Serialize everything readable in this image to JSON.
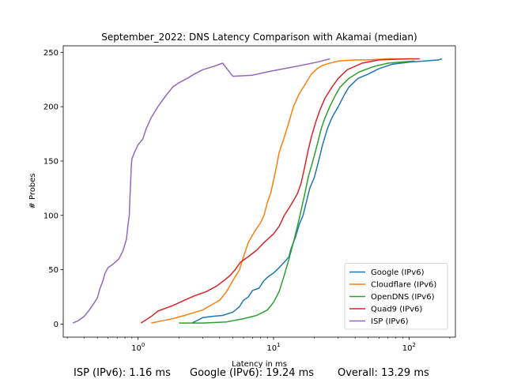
{
  "chart_data": {
    "type": "line",
    "title": "September_2022: DNS Latency Comparison with Akamai (median)",
    "xlabel": "Latency in ms",
    "ylabel": "# Probes",
    "xscale": "log",
    "xlim": [
      0.28,
      220
    ],
    "ylim": [
      -12,
      256
    ],
    "x_ticks": [
      {
        "value": 1,
        "label": "10^0"
      },
      {
        "value": 10,
        "label": "10^1"
      },
      {
        "value": 100,
        "label": "10^2"
      }
    ],
    "y_ticks": [
      0,
      50,
      100,
      150,
      200,
      250
    ],
    "grid": false,
    "legend_position": "lower-right",
    "series": [
      {
        "name": "Google (IPv6)",
        "color": "#1f77b4",
        "points": [
          [
            2.5,
            1
          ],
          [
            2.8,
            4
          ],
          [
            3.0,
            6
          ],
          [
            3.5,
            7
          ],
          [
            4.2,
            8
          ],
          [
            5.0,
            11
          ],
          [
            5.6,
            16
          ],
          [
            6.0,
            22
          ],
          [
            6.5,
            25
          ],
          [
            7.0,
            31
          ],
          [
            7.8,
            33
          ],
          [
            8.5,
            40
          ],
          [
            9.0,
            43
          ],
          [
            10.0,
            47
          ],
          [
            11.0,
            52
          ],
          [
            12.0,
            57
          ],
          [
            13.0,
            62
          ],
          [
            13.5,
            70
          ],
          [
            14.5,
            80
          ],
          [
            15.5,
            92
          ],
          [
            16.5,
            100
          ],
          [
            17.5,
            113
          ],
          [
            18.5,
            125
          ],
          [
            20.0,
            135
          ],
          [
            21.5,
            150
          ],
          [
            23.0,
            165
          ],
          [
            25.0,
            180
          ],
          [
            27.0,
            190
          ],
          [
            30.0,
            200
          ],
          [
            33.0,
            210
          ],
          [
            36.0,
            218
          ],
          [
            42.0,
            226
          ],
          [
            50.0,
            230
          ],
          [
            60.0,
            235
          ],
          [
            75.0,
            239
          ],
          [
            100.0,
            241
          ],
          [
            130.0,
            242
          ],
          [
            165.0,
            243
          ],
          [
            175.0,
            244
          ]
        ]
      },
      {
        "name": "Cloudflare (IPv6)",
        "color": "#ff7f0e",
        "points": [
          [
            1.25,
            1
          ],
          [
            1.5,
            3
          ],
          [
            1.8,
            5
          ],
          [
            2.2,
            8
          ],
          [
            3.0,
            13
          ],
          [
            4.0,
            22
          ],
          [
            4.5,
            30
          ],
          [
            5.0,
            40
          ],
          [
            5.6,
            50
          ],
          [
            6.0,
            62
          ],
          [
            6.5,
            75
          ],
          [
            7.0,
            82
          ],
          [
            7.5,
            88
          ],
          [
            8.0,
            93
          ],
          [
            8.5,
            100
          ],
          [
            9.0,
            112
          ],
          [
            9.5,
            120
          ],
          [
            10.0,
            132
          ],
          [
            10.5,
            145
          ],
          [
            11.0,
            158
          ],
          [
            12.0,
            172
          ],
          [
            13.0,
            186
          ],
          [
            14.0,
            200
          ],
          [
            15.5,
            212
          ],
          [
            17.0,
            220
          ],
          [
            19.0,
            230
          ],
          [
            21.0,
            235
          ],
          [
            23.0,
            238
          ],
          [
            26.0,
            240
          ],
          [
            30.0,
            242
          ],
          [
            40.0,
            243
          ],
          [
            50.0,
            243
          ],
          [
            70.0,
            244
          ],
          [
            100.0,
            244
          ]
        ]
      },
      {
        "name": "OpenDNS (IPv6)",
        "color": "#2ca02c",
        "points": [
          [
            2.0,
            1
          ],
          [
            3.0,
            1
          ],
          [
            4.5,
            2
          ],
          [
            6.0,
            5
          ],
          [
            7.5,
            8
          ],
          [
            9.0,
            13
          ],
          [
            10.0,
            20
          ],
          [
            11.0,
            30
          ],
          [
            12.0,
            45
          ],
          [
            13.0,
            60
          ],
          [
            14.0,
            75
          ],
          [
            15.0,
            90
          ],
          [
            16.0,
            105
          ],
          [
            17.0,
            120
          ],
          [
            18.0,
            135
          ],
          [
            19.5,
            150
          ],
          [
            21.0,
            165
          ],
          [
            22.5,
            180
          ],
          [
            24.0,
            190
          ],
          [
            26.0,
            200
          ],
          [
            28.5,
            210
          ],
          [
            31.0,
            218
          ],
          [
            36.0,
            226
          ],
          [
            43.0,
            232
          ],
          [
            55.0,
            237
          ],
          [
            70.0,
            240
          ],
          [
            85.0,
            241
          ],
          [
            110.0,
            242
          ]
        ]
      },
      {
        "name": "Quad9 (IPv6)",
        "color": "#d62728",
        "points": [
          [
            1.05,
            1
          ],
          [
            1.25,
            7
          ],
          [
            1.4,
            12
          ],
          [
            1.8,
            17
          ],
          [
            2.2,
            22
          ],
          [
            2.6,
            26
          ],
          [
            3.2,
            30
          ],
          [
            3.8,
            35
          ],
          [
            4.3,
            40
          ],
          [
            4.8,
            45
          ],
          [
            5.2,
            50
          ],
          [
            5.7,
            57
          ],
          [
            6.5,
            62
          ],
          [
            7.5,
            68
          ],
          [
            8.5,
            75
          ],
          [
            10.0,
            83
          ],
          [
            11.0,
            90
          ],
          [
            12.0,
            100
          ],
          [
            13.5,
            110
          ],
          [
            15.0,
            120
          ],
          [
            16.0,
            130
          ],
          [
            17.0,
            145
          ],
          [
            18.0,
            160
          ],
          [
            19.0,
            172
          ],
          [
            20.5,
            186
          ],
          [
            22.0,
            197
          ],
          [
            24.0,
            208
          ],
          [
            27.0,
            218
          ],
          [
            30.0,
            226
          ],
          [
            35.0,
            234
          ],
          [
            45.0,
            240
          ],
          [
            60.0,
            243
          ],
          [
            100.0,
            244
          ],
          [
            120.0,
            244
          ]
        ]
      },
      {
        "name": "ISP (IPv6)",
        "color": "#9467bd",
        "points": [
          [
            0.33,
            1
          ],
          [
            0.36,
            3
          ],
          [
            0.4,
            7
          ],
          [
            0.43,
            12
          ],
          [
            0.46,
            17
          ],
          [
            0.5,
            24
          ],
          [
            0.52,
            32
          ],
          [
            0.55,
            40
          ],
          [
            0.57,
            47
          ],
          [
            0.6,
            52
          ],
          [
            0.65,
            55
          ],
          [
            0.72,
            60
          ],
          [
            0.77,
            67
          ],
          [
            0.82,
            78
          ],
          [
            0.84,
            90
          ],
          [
            0.86,
            100
          ],
          [
            0.87,
            115
          ],
          [
            0.88,
            130
          ],
          [
            0.89,
            145
          ],
          [
            0.9,
            152
          ],
          [
            0.94,
            158
          ],
          [
            1.0,
            165
          ],
          [
            1.08,
            170
          ],
          [
            1.15,
            180
          ],
          [
            1.25,
            190
          ],
          [
            1.4,
            200
          ],
          [
            1.6,
            210
          ],
          [
            1.8,
            218
          ],
          [
            2.0,
            222
          ],
          [
            2.3,
            226
          ],
          [
            2.6,
            230
          ],
          [
            3.0,
            234
          ],
          [
            3.6,
            237
          ],
          [
            4.2,
            240
          ],
          [
            5.0,
            228
          ],
          [
            7.0,
            229
          ],
          [
            9.0,
            232
          ],
          [
            12.0,
            235
          ],
          [
            16.0,
            238
          ],
          [
            21.0,
            241
          ],
          [
            26.0,
            244
          ]
        ]
      }
    ]
  },
  "footer": {
    "isp_stat": "ISP (IPv6): 1.16 ms",
    "google_stat": "Google (IPv6): 19.24 ms",
    "overall_stat": "Overall: 13.29 ms"
  }
}
